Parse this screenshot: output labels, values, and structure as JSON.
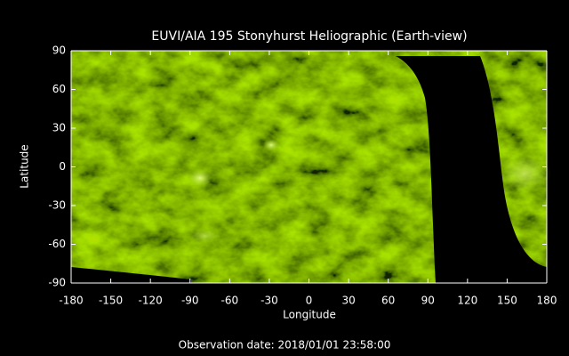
{
  "chart_data": {
    "type": "image",
    "title": "EUVI/AIA 195 Stonyhurst Heliographic (Earth-view)",
    "xlabel": "Longitude",
    "ylabel": "Latitude",
    "xlim": [
      -180,
      180
    ],
    "ylim": [
      -90,
      90
    ],
    "xticks": [
      -180,
      -150,
      -120,
      -90,
      -60,
      -30,
      0,
      30,
      60,
      90,
      120,
      150,
      180
    ],
    "yticks": [
      -90,
      -60,
      -30,
      0,
      30,
      60,
      90
    ],
    "annotation": "Observation date: 2018/01/01 23:58:00"
  }
}
